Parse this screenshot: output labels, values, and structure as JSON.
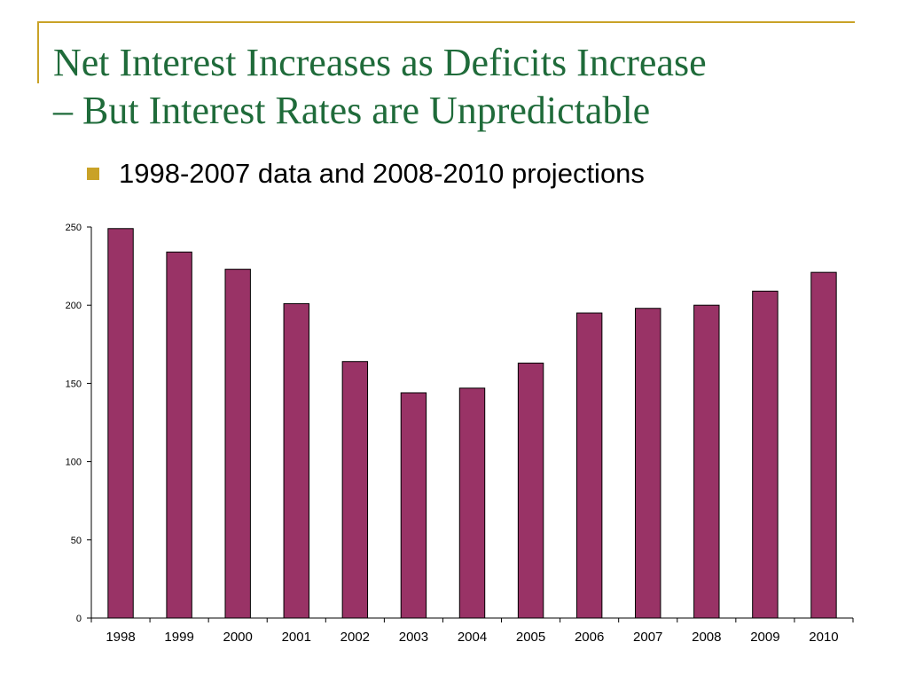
{
  "slide": {
    "title_line1": "Net Interest Increases as Deficits Increase",
    "title_line2": "– But Interest Rates are Unpredictable",
    "bullet": "1998-2007 data and 2008-2010 projections",
    "colors": {
      "title": "#1f6b3a",
      "accent": "#c9a227",
      "bar": "#993366"
    }
  },
  "chart_data": {
    "type": "bar",
    "categories": [
      "1998",
      "1999",
      "2000",
      "2001",
      "2002",
      "2003",
      "2004",
      "2005",
      "2006",
      "2007",
      "2008",
      "2009",
      "2010"
    ],
    "values": [
      249,
      234,
      223,
      201,
      164,
      144,
      147,
      163,
      195,
      198,
      200,
      209,
      221
    ],
    "ylim": [
      0,
      250
    ],
    "yticks": [
      0,
      50,
      100,
      150,
      200,
      250
    ],
    "title": "",
    "xlabel": "",
    "ylabel": "",
    "grid": false,
    "bar_color": "#993366"
  }
}
